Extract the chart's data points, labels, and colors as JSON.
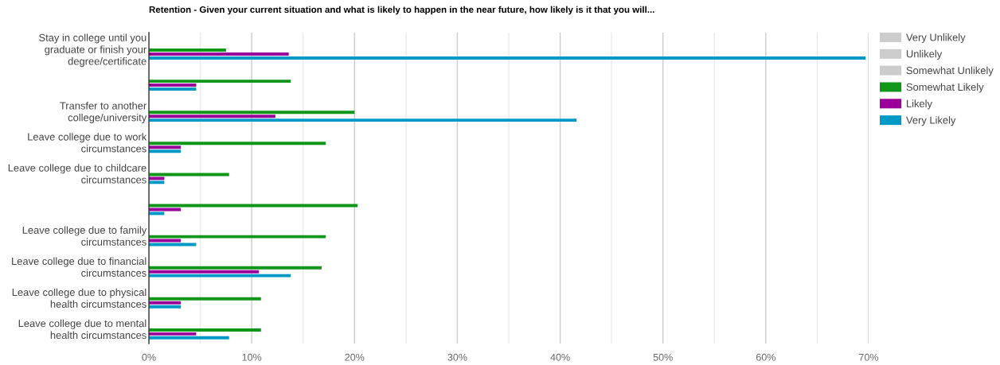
{
  "chart_data": {
    "type": "bar",
    "orientation": "horizontal",
    "title": "Retention - Given your current situation and what is likely to happen in the near future, how likely is it that you will...",
    "categories": [
      "Stay in college until you\ngraduate or finish your\ndegree/certificate",
      null,
      "Transfer to another\ncollege/university",
      "Leave college due to work\ncircumstances",
      "Leave college due to childcare\ncircumstances",
      null,
      "Leave college due to family\ncircumstances",
      "Leave college due to financial\ncircumstances",
      "Leave college due to physical\nhealth circumstances",
      "Leave college due to mental\nhealth circumstances"
    ],
    "series": [
      {
        "name": "Very Unlikely",
        "color": "#cccccc",
        "values": [
          null,
          null,
          null,
          null,
          null,
          null,
          null,
          null,
          null,
          null
        ]
      },
      {
        "name": "Unlikely",
        "color": "#cccccc",
        "values": [
          null,
          null,
          null,
          null,
          null,
          null,
          null,
          null,
          null,
          null
        ]
      },
      {
        "name": "Somewhat Unlikely",
        "color": "#cccccc",
        "values": [
          null,
          null,
          null,
          null,
          null,
          null,
          null,
          null,
          null,
          null
        ]
      },
      {
        "name": "Somewhat Likely",
        "color": "#109618",
        "values": [
          7.5,
          13.8,
          20.0,
          17.2,
          7.8,
          20.3,
          17.2,
          16.8,
          10.9,
          10.9
        ]
      },
      {
        "name": "Likely",
        "color": "#990099",
        "values": [
          13.6,
          4.6,
          12.3,
          3.1,
          1.5,
          3.1,
          3.1,
          10.7,
          3.1,
          4.6
        ]
      },
      {
        "name": "Very Likely",
        "color": "#0099c6",
        "values": [
          69.7,
          4.6,
          41.6,
          3.1,
          1.5,
          1.5,
          4.6,
          13.8,
          3.1,
          7.8
        ]
      }
    ],
    "xlim": [
      0,
      70
    ],
    "xticks": [
      {
        "value": 0,
        "label": "0%"
      },
      {
        "value": 5,
        "label": null
      },
      {
        "value": 10,
        "label": "10%"
      },
      {
        "value": 15,
        "label": null
      },
      {
        "value": 20,
        "label": "20%"
      },
      {
        "value": 25,
        "label": null
      },
      {
        "value": 30,
        "label": "30%"
      },
      {
        "value": 35,
        "label": null
      },
      {
        "value": 40,
        "label": "40%"
      },
      {
        "value": 45,
        "label": null
      },
      {
        "value": 50,
        "label": "50%"
      },
      {
        "value": 55,
        "label": null
      },
      {
        "value": 60,
        "label": "60%"
      },
      {
        "value": 65,
        "label": null
      },
      {
        "value": 70,
        "label": "70%"
      }
    ],
    "grid": "x",
    "legend": "top right"
  }
}
